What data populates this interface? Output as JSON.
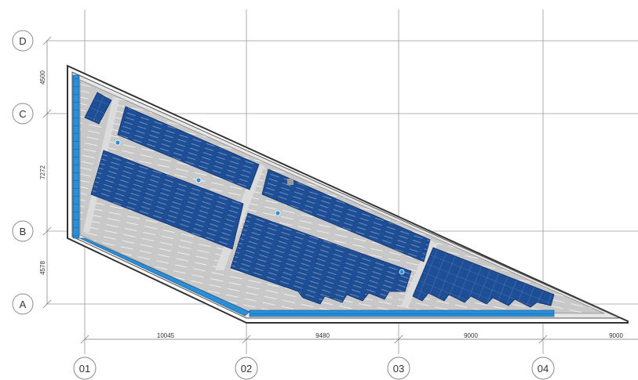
{
  "grid": {
    "rows": [
      "A",
      "B",
      "C",
      "D"
    ],
    "columns": [
      "01",
      "02",
      "03",
      "04"
    ]
  },
  "dimensions": {
    "horizontal": [
      "10045",
      "9480",
      "9000",
      "9000"
    ],
    "vertical": [
      "4500",
      "7272",
      "4578"
    ]
  },
  "colors": {
    "panel": "#1e4f96",
    "panel_edge": "#0d2f6b",
    "gutter": "#2a8fd6",
    "roof": "#c4c4c4",
    "walkway": "#dcdcdc",
    "parapet": "#e6e6e6",
    "outline": "#333333"
  }
}
